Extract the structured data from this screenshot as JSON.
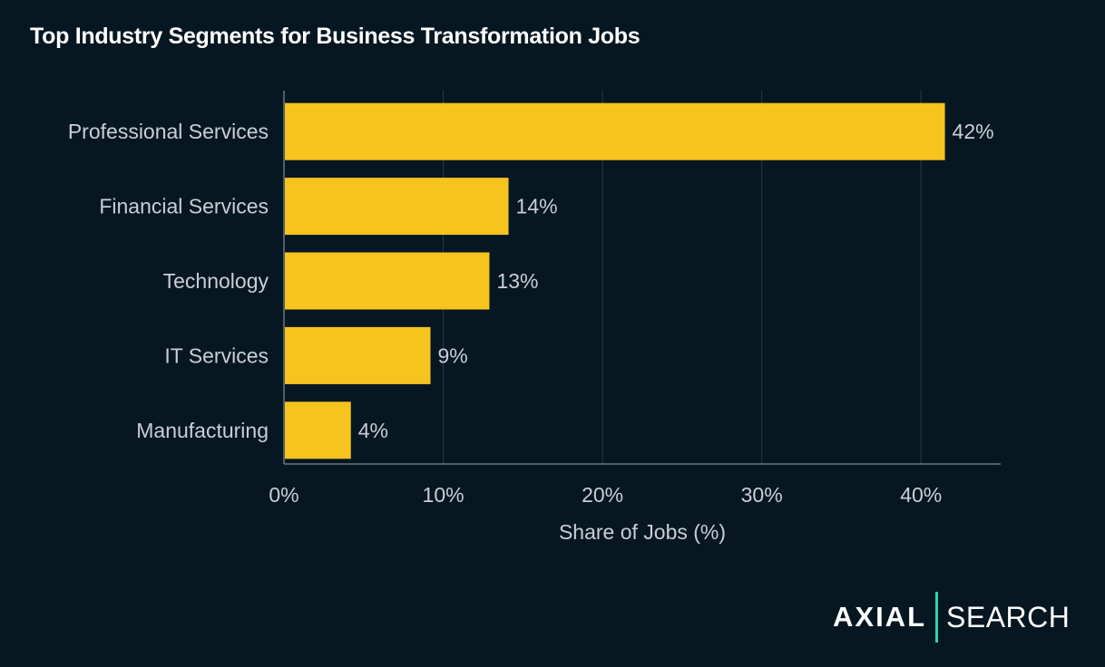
{
  "chart_data": {
    "type": "bar",
    "orientation": "horizontal",
    "title": "Top Industry Segments for Business Transformation Jobs",
    "xlabel": "Share of Jobs (%)",
    "ylabel": "",
    "categories": [
      "Professional Services",
      "Financial Services",
      "Technology",
      "IT Services",
      "Manufacturing"
    ],
    "values": [
      41.5,
      14.1,
      12.9,
      9.2,
      4.2
    ],
    "data_labels": [
      "42%",
      "14%",
      "13%",
      "9%",
      "4%"
    ],
    "xlim": [
      0,
      45
    ],
    "xticks": [
      0,
      10,
      20,
      30,
      40
    ],
    "xtick_labels": [
      "0%",
      "10%",
      "20%",
      "30%",
      "40%"
    ],
    "grid": true,
    "colors": {
      "bar": "#f6c31f",
      "background": "#071722",
      "grid": "#2b3a45",
      "text": "#c9ced3"
    }
  },
  "logo": {
    "left": "AXIAL",
    "right": "SEARCH"
  }
}
